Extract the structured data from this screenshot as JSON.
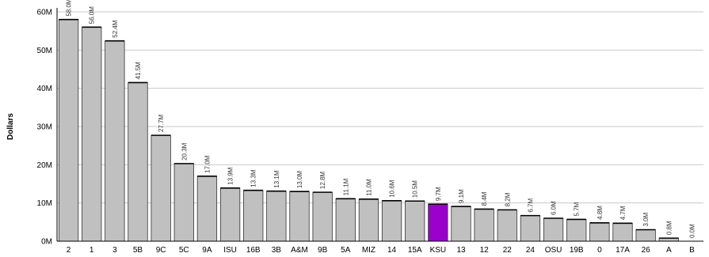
{
  "chart_data": {
    "type": "bar",
    "ylabel": "Dollars",
    "ylim": [
      0,
      60
    ],
    "yticks": [
      "0M",
      "10M",
      "20M",
      "30M",
      "40M",
      "50M",
      "60M"
    ],
    "grid": true,
    "bar_color": "#c0c0c0",
    "highlight_color": "#9900cc",
    "highlight_category": "KSU",
    "categories": [
      "2",
      "1",
      "3",
      "5B",
      "9C",
      "5C",
      "9A",
      "ISU",
      "16B",
      "3B",
      "A&M",
      "9B",
      "5A",
      "MIZ",
      "14",
      "15A",
      "KSU",
      "13",
      "12",
      "22",
      "24",
      "OSU",
      "19B",
      "0",
      "17A",
      "26",
      "A",
      "B"
    ],
    "values": [
      58.0,
      56.0,
      52.4,
      41.5,
      27.7,
      20.3,
      17.0,
      13.9,
      13.3,
      13.1,
      13.0,
      12.8,
      11.1,
      11.0,
      10.6,
      10.5,
      9.7,
      9.1,
      8.4,
      8.2,
      6.7,
      6.0,
      5.7,
      4.8,
      4.7,
      3.0,
      0.8,
      0.0
    ],
    "data_labels": [
      "58.0M",
      "56.0M",
      "52.4M",
      "41.5M",
      "27.7M",
      "20.3M",
      "17.0M",
      "13.9M",
      "13.3M",
      "13.1M",
      "13.0M",
      "12.8M",
      "11.1M",
      "11.0M",
      "10.6M",
      "10.5M",
      "9.7M",
      "9.1M",
      "8.4M",
      "8.2M",
      "6.7M",
      "6.0M",
      "5.7M",
      "4.8M",
      "4.7M",
      "3.0M",
      "0.8M",
      "0.0M"
    ]
  }
}
